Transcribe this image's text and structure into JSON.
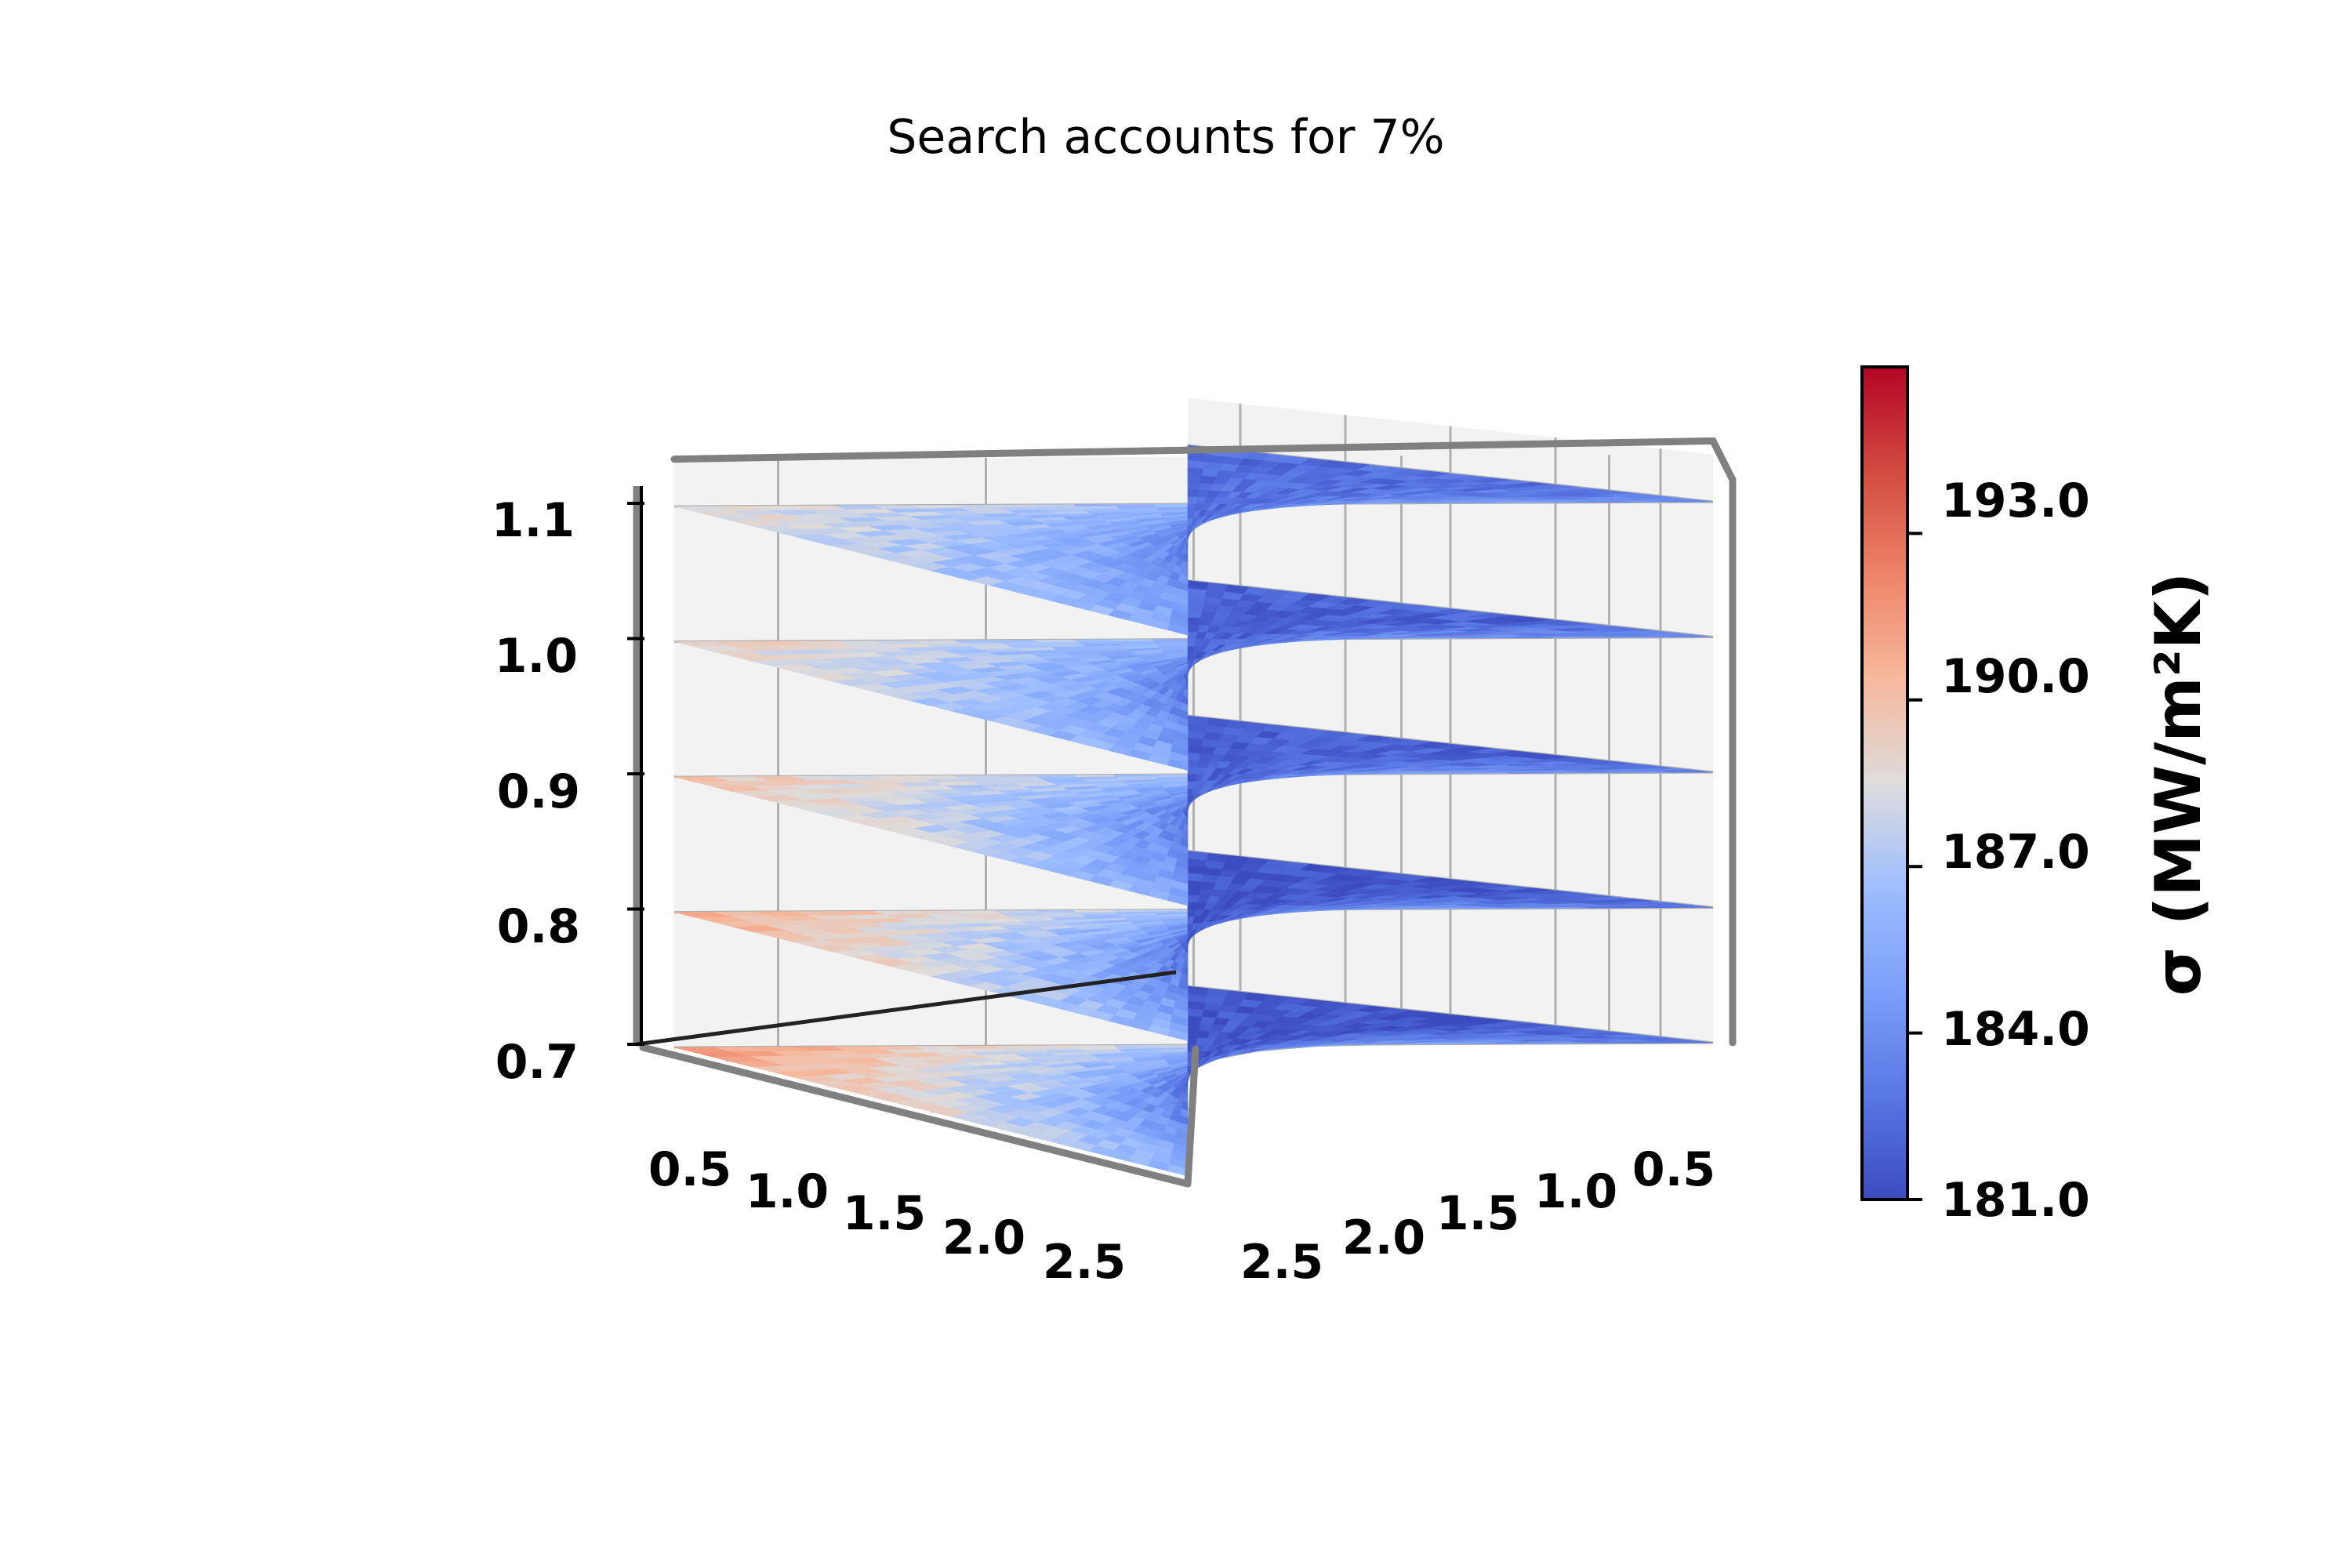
{
  "chart_data": {
    "type": "heatmap",
    "title": "Search accounts for 7%",
    "x_axis": {
      "tick_labels": [
        "0.5",
        "1.0",
        "1.5",
        "2.0",
        "2.5"
      ],
      "range": [
        0.25,
        2.75
      ]
    },
    "y_axis": {
      "tick_labels": [
        "0.5",
        "1.0",
        "1.5",
        "2.0",
        "2.5"
      ],
      "range": [
        0.25,
        2.75
      ]
    },
    "z_axis": {
      "tick_labels": [
        "0.7",
        "0.8",
        "0.9",
        "1.0",
        "1.1"
      ],
      "range": [
        0.7,
        1.1
      ]
    },
    "colorbar": {
      "label": "σ (MW/m²K)",
      "tick_labels": [
        "181.0",
        "184.0",
        "187.0",
        "190.0",
        "193.0"
      ],
      "range": [
        181.0,
        196.0
      ],
      "colormap": "coolwarm"
    },
    "slices": [
      {
        "z": 0.7,
        "value_range": [
          181.5,
          191.5
        ]
      },
      {
        "z": 0.8,
        "value_range": [
          181.5,
          191.0
        ]
      },
      {
        "z": 0.9,
        "value_range": [
          182.0,
          190.0
        ]
      },
      {
        "z": 1.0,
        "value_range": [
          182.0,
          189.5
        ]
      },
      {
        "z": 1.1,
        "value_range": [
          182.5,
          189.0
        ]
      }
    ],
    "grid": true
  }
}
